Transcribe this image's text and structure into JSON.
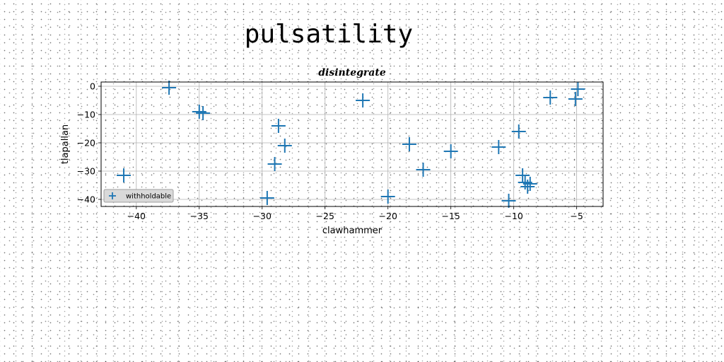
{
  "suptitle": "pulsatility",
  "chart_data": {
    "type": "scatter",
    "title": "disintegrate",
    "xlabel": "clawhammer",
    "ylabel": "tlapallan",
    "xlim": [
      -42.8,
      -2.9
    ],
    "ylim": [
      -42.5,
      1.5
    ],
    "xticks": [
      -40,
      -35,
      -30,
      -25,
      -20,
      -15,
      -10,
      -5
    ],
    "yticks": [
      0,
      -10,
      -20,
      -30,
      -40
    ],
    "grid": true,
    "legend": "lower-left",
    "marker": "plus",
    "color": "#1f77b4",
    "series": [
      {
        "name": "withholdable",
        "x": [
          -37.4,
          -41.0,
          -35.0,
          -34.7,
          -29.6,
          -29.0,
          -28.7,
          -28.2,
          -22.0,
          -20.0,
          -18.3,
          -17.2,
          -15.0,
          -11.2,
          -10.4,
          -9.6,
          -9.3,
          -9.1,
          -8.9,
          -8.7,
          -7.1,
          -5.1,
          -4.9
        ],
        "y": [
          -0.5,
          -31.5,
          -9.0,
          -9.5,
          -39.5,
          -27.5,
          -14.0,
          -21.0,
          -5.0,
          -39.0,
          -20.5,
          -29.5,
          -23.0,
          -21.5,
          -40.5,
          -16.0,
          -31.5,
          -34.0,
          -35.5,
          -34.5,
          -4.0,
          -4.5,
          -1.0
        ]
      }
    ]
  }
}
